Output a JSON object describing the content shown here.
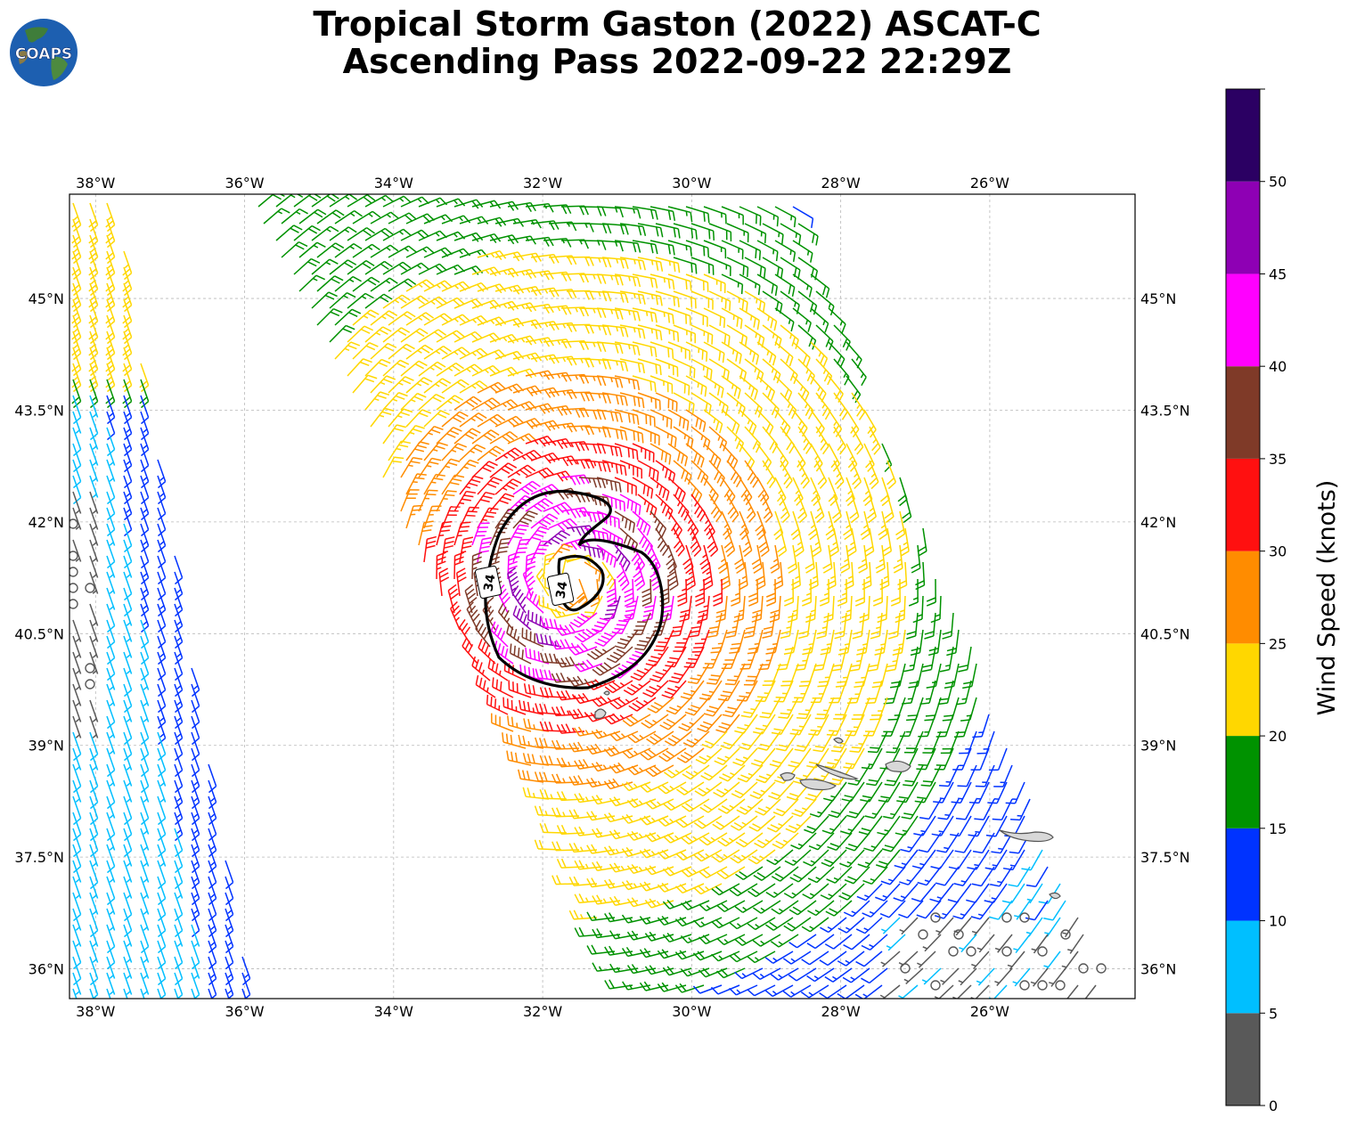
{
  "title": {
    "line1": "Tropical Storm Gaston (2022) ASCAT-C",
    "line2": "Ascending Pass 2022-09-22 22:29Z"
  },
  "logo": {
    "text": "COAPS",
    "icon": "globe-icon"
  },
  "map": {
    "lon_range": [
      -38.35,
      -24.05
    ],
    "lat_range": [
      35.6,
      46.4
    ],
    "lon_ticks": [
      "38°W",
      "36°W",
      "34°W",
      "32°W",
      "30°W",
      "28°W",
      "26°W"
    ],
    "lon_tick_values": [
      -38,
      -36,
      -34,
      -32,
      -30,
      -28,
      -26
    ],
    "lat_ticks": [
      "45°N",
      "43.5°N",
      "42°N",
      "40.5°N",
      "39°N",
      "37.5°N",
      "36°N"
    ],
    "lat_tick_values": [
      45,
      43.5,
      42,
      40.5,
      39,
      37.5,
      36
    ],
    "storm_center": {
      "lon": -31.6,
      "lat": 41.2
    },
    "wind_radius_contour_label": "34",
    "wind_radius_contour_label_2": "34",
    "colors": {
      "grid": "#b8b8b8",
      "contour": "#000000",
      "land_fill": "#d8d8d8",
      "land_edge": "#555555"
    }
  },
  "colorbar": {
    "label": "Wind Speed (knots)",
    "ticks": [
      "0",
      "5",
      "10",
      "15",
      "20",
      "25",
      "30",
      "35",
      "40",
      "45",
      "50"
    ],
    "tick_values": [
      0,
      5,
      10,
      15,
      20,
      25,
      30,
      35,
      40,
      45,
      50
    ],
    "range": [
      0,
      55
    ],
    "bins": [
      {
        "min": 0,
        "max": 5,
        "color": "#595959"
      },
      {
        "min": 5,
        "max": 10,
        "color": "#00bfff"
      },
      {
        "min": 10,
        "max": 15,
        "color": "#0033ff"
      },
      {
        "min": 15,
        "max": 20,
        "color": "#009200"
      },
      {
        "min": 20,
        "max": 25,
        "color": "#ffd700"
      },
      {
        "min": 25,
        "max": 30,
        "color": "#ff8c00"
      },
      {
        "min": 30,
        "max": 35,
        "color": "#ff1010"
      },
      {
        "min": 35,
        "max": 40,
        "color": "#7f3a28"
      },
      {
        "min": 40,
        "max": 45,
        "color": "#ff00ff"
      },
      {
        "min": 45,
        "max": 50,
        "color": "#8e00b4"
      },
      {
        "min": 50,
        "max": 55,
        "color": "#2b0063"
      }
    ]
  }
}
